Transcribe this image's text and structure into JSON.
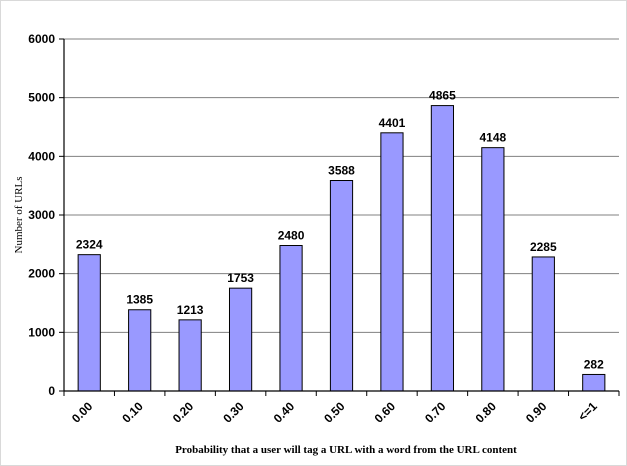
{
  "chart_data": {
    "type": "bar",
    "categories": [
      "0.00",
      "0.10",
      "0.20",
      "0.30",
      "0.40",
      "0.50",
      "0.60",
      "0.70",
      "0.80",
      "0.90",
      "<=1"
    ],
    "values": [
      2324,
      1385,
      1213,
      1753,
      2480,
      3588,
      4401,
      4865,
      4148,
      2285,
      282
    ],
    "value_labels": [
      "2324",
      "1385",
      "1213",
      "1753",
      "2480",
      "3588",
      "4401",
      "4865",
      "4148",
      "2285",
      "282"
    ],
    "title": "",
    "xlabel": "Probability that a user will tag a URL with a word from the URL content",
    "ylabel": "Number of URLs",
    "ylim": [
      0,
      6000
    ],
    "yticks": [
      0,
      1000,
      2000,
      3000,
      4000,
      5000,
      6000
    ],
    "ytick_labels": [
      "0",
      "1000",
      "2000",
      "3000",
      "4000",
      "5000",
      "6000"
    ],
    "grid": true,
    "legend": "none",
    "colors": {
      "bar_fill": "#9999ff",
      "bar_stroke": "#000000",
      "grid": "#808080",
      "axis": "#000000"
    }
  }
}
